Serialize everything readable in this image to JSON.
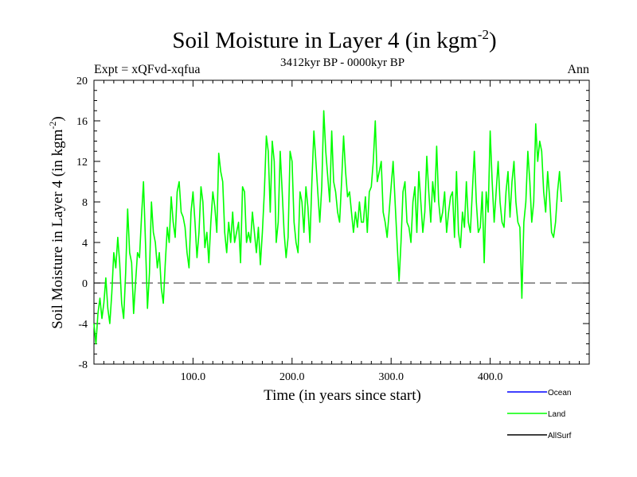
{
  "chart_data": {
    "type": "line",
    "title": "Soil Moisture in Layer 4 (in kgm",
    "title_sup": "-2",
    "title_close": ")",
    "subtitle": "3412kyr BP - 0000kyr BP",
    "experiment_label": "Expt = xQFvd-xqfua",
    "season_label": "Ann",
    "xlabel": "Time (in years since start)",
    "ylabel": "Soil Moisture in Layer 4 (in kgm",
    "ylabel_sup": "-2",
    "ylabel_close": ")",
    "xlim": [
      0,
      500
    ],
    "ylim": [
      -8,
      20
    ],
    "x_ticks": [
      100,
      200,
      300,
      400
    ],
    "x_tick_labels": [
      "100.0",
      "200.0",
      "300.0",
      "400.0"
    ],
    "y_ticks": [
      -8,
      -4,
      0,
      4,
      8,
      12,
      16,
      20
    ],
    "y_tick_labels": [
      "-8",
      "-4",
      "0",
      "4",
      "8",
      "12",
      "16",
      "20"
    ],
    "zero_line": 0,
    "legend_position": "bottom-right",
    "series": [
      {
        "name": "Ocean",
        "color": "#0000ff",
        "values": []
      },
      {
        "name": "Land",
        "color": "#00ff00",
        "x_start": 0,
        "x_step": 2,
        "values": [
          -4.0,
          -6.0,
          -3.0,
          -1.5,
          -3.5,
          -2.0,
          0.5,
          -2.5,
          -4.0,
          -1.0,
          3.0,
          1.5,
          4.5,
          2.0,
          -2.0,
          -3.5,
          1.0,
          7.3,
          3.0,
          2.0,
          -3.0,
          0.0,
          3.0,
          2.5,
          6.5,
          10.0,
          4.0,
          -2.5,
          1.0,
          8.0,
          5.0,
          4.0,
          1.5,
          3.0,
          -0.5,
          -2.0,
          2.0,
          5.5,
          4.0,
          8.5,
          6.0,
          4.5,
          9.0,
          10.0,
          7.0,
          6.5,
          5.5,
          3.0,
          1.5,
          7.0,
          9.0,
          6.0,
          2.5,
          5.0,
          9.5,
          8.0,
          3.5,
          5.0,
          2.0,
          6.0,
          9.0,
          7.5,
          5.0,
          12.8,
          11.0,
          10.0,
          5.0,
          3.0,
          6.0,
          4.0,
          7.0,
          4.0,
          5.0,
          6.0,
          2.0,
          9.5,
          9.0,
          4.0,
          5.0,
          4.0,
          7.0,
          5.0,
          3.0,
          5.5,
          1.8,
          5.0,
          9.0,
          14.5,
          13.0,
          7.0,
          14.0,
          12.0,
          4.0,
          6.0,
          13.0,
          9.0,
          5.0,
          2.5,
          4.5,
          13.0,
          12.0,
          6.0,
          4.0,
          3.0,
          9.0,
          8.0,
          5.0,
          9.5,
          7.5,
          4.0,
          10.0,
          15.0,
          12.0,
          9.0,
          6.0,
          9.5,
          17.0,
          13.0,
          10.5,
          8.0,
          15.0,
          10.0,
          9.0,
          7.0,
          6.0,
          10.0,
          14.5,
          11.0,
          8.5,
          9.0,
          7.0,
          5.0,
          7.0,
          5.5,
          8.0,
          6.0,
          6.0,
          8.5,
          5.0,
          9.0,
          9.5,
          12.0,
          16.0,
          10.0,
          11.0,
          12.0,
          7.0,
          6.0,
          4.5,
          7.0,
          9.5,
          12.0,
          8.0,
          4.0,
          0.2,
          4.0,
          9.0,
          10.0,
          6.0,
          5.5,
          4.0,
          8.0,
          9.5,
          5.0,
          11.0,
          8.0,
          5.0,
          7.0,
          12.5,
          9.0,
          6.0,
          10.0,
          8.0,
          13.5,
          8.0,
          6.0,
          7.0,
          9.0,
          5.0,
          7.0,
          8.5,
          9.0,
          4.5,
          11.0,
          5.0,
          3.5,
          7.0,
          5.5,
          10.0,
          6.0,
          5.0,
          9.0,
          13.0,
          8.0,
          5.0,
          5.5,
          9.0,
          2.0,
          9.0,
          7.0,
          15.0,
          10.0,
          6.0,
          9.0,
          12.0,
          8.0,
          6.0,
          5.5,
          9.0,
          11.0,
          6.5,
          10.0,
          12.0,
          8.0,
          6.0,
          5.5,
          -1.5,
          6.0,
          8.0,
          13.0,
          10.0,
          6.0,
          8.0,
          15.7,
          12.0,
          14.0,
          13.0,
          9.0,
          7.0,
          11.0,
          8.5,
          5.0,
          4.5,
          6.0,
          9.0,
          11.0,
          8.0
        ]
      },
      {
        "name": "AllSurf",
        "color": "#000000",
        "values": []
      }
    ]
  }
}
